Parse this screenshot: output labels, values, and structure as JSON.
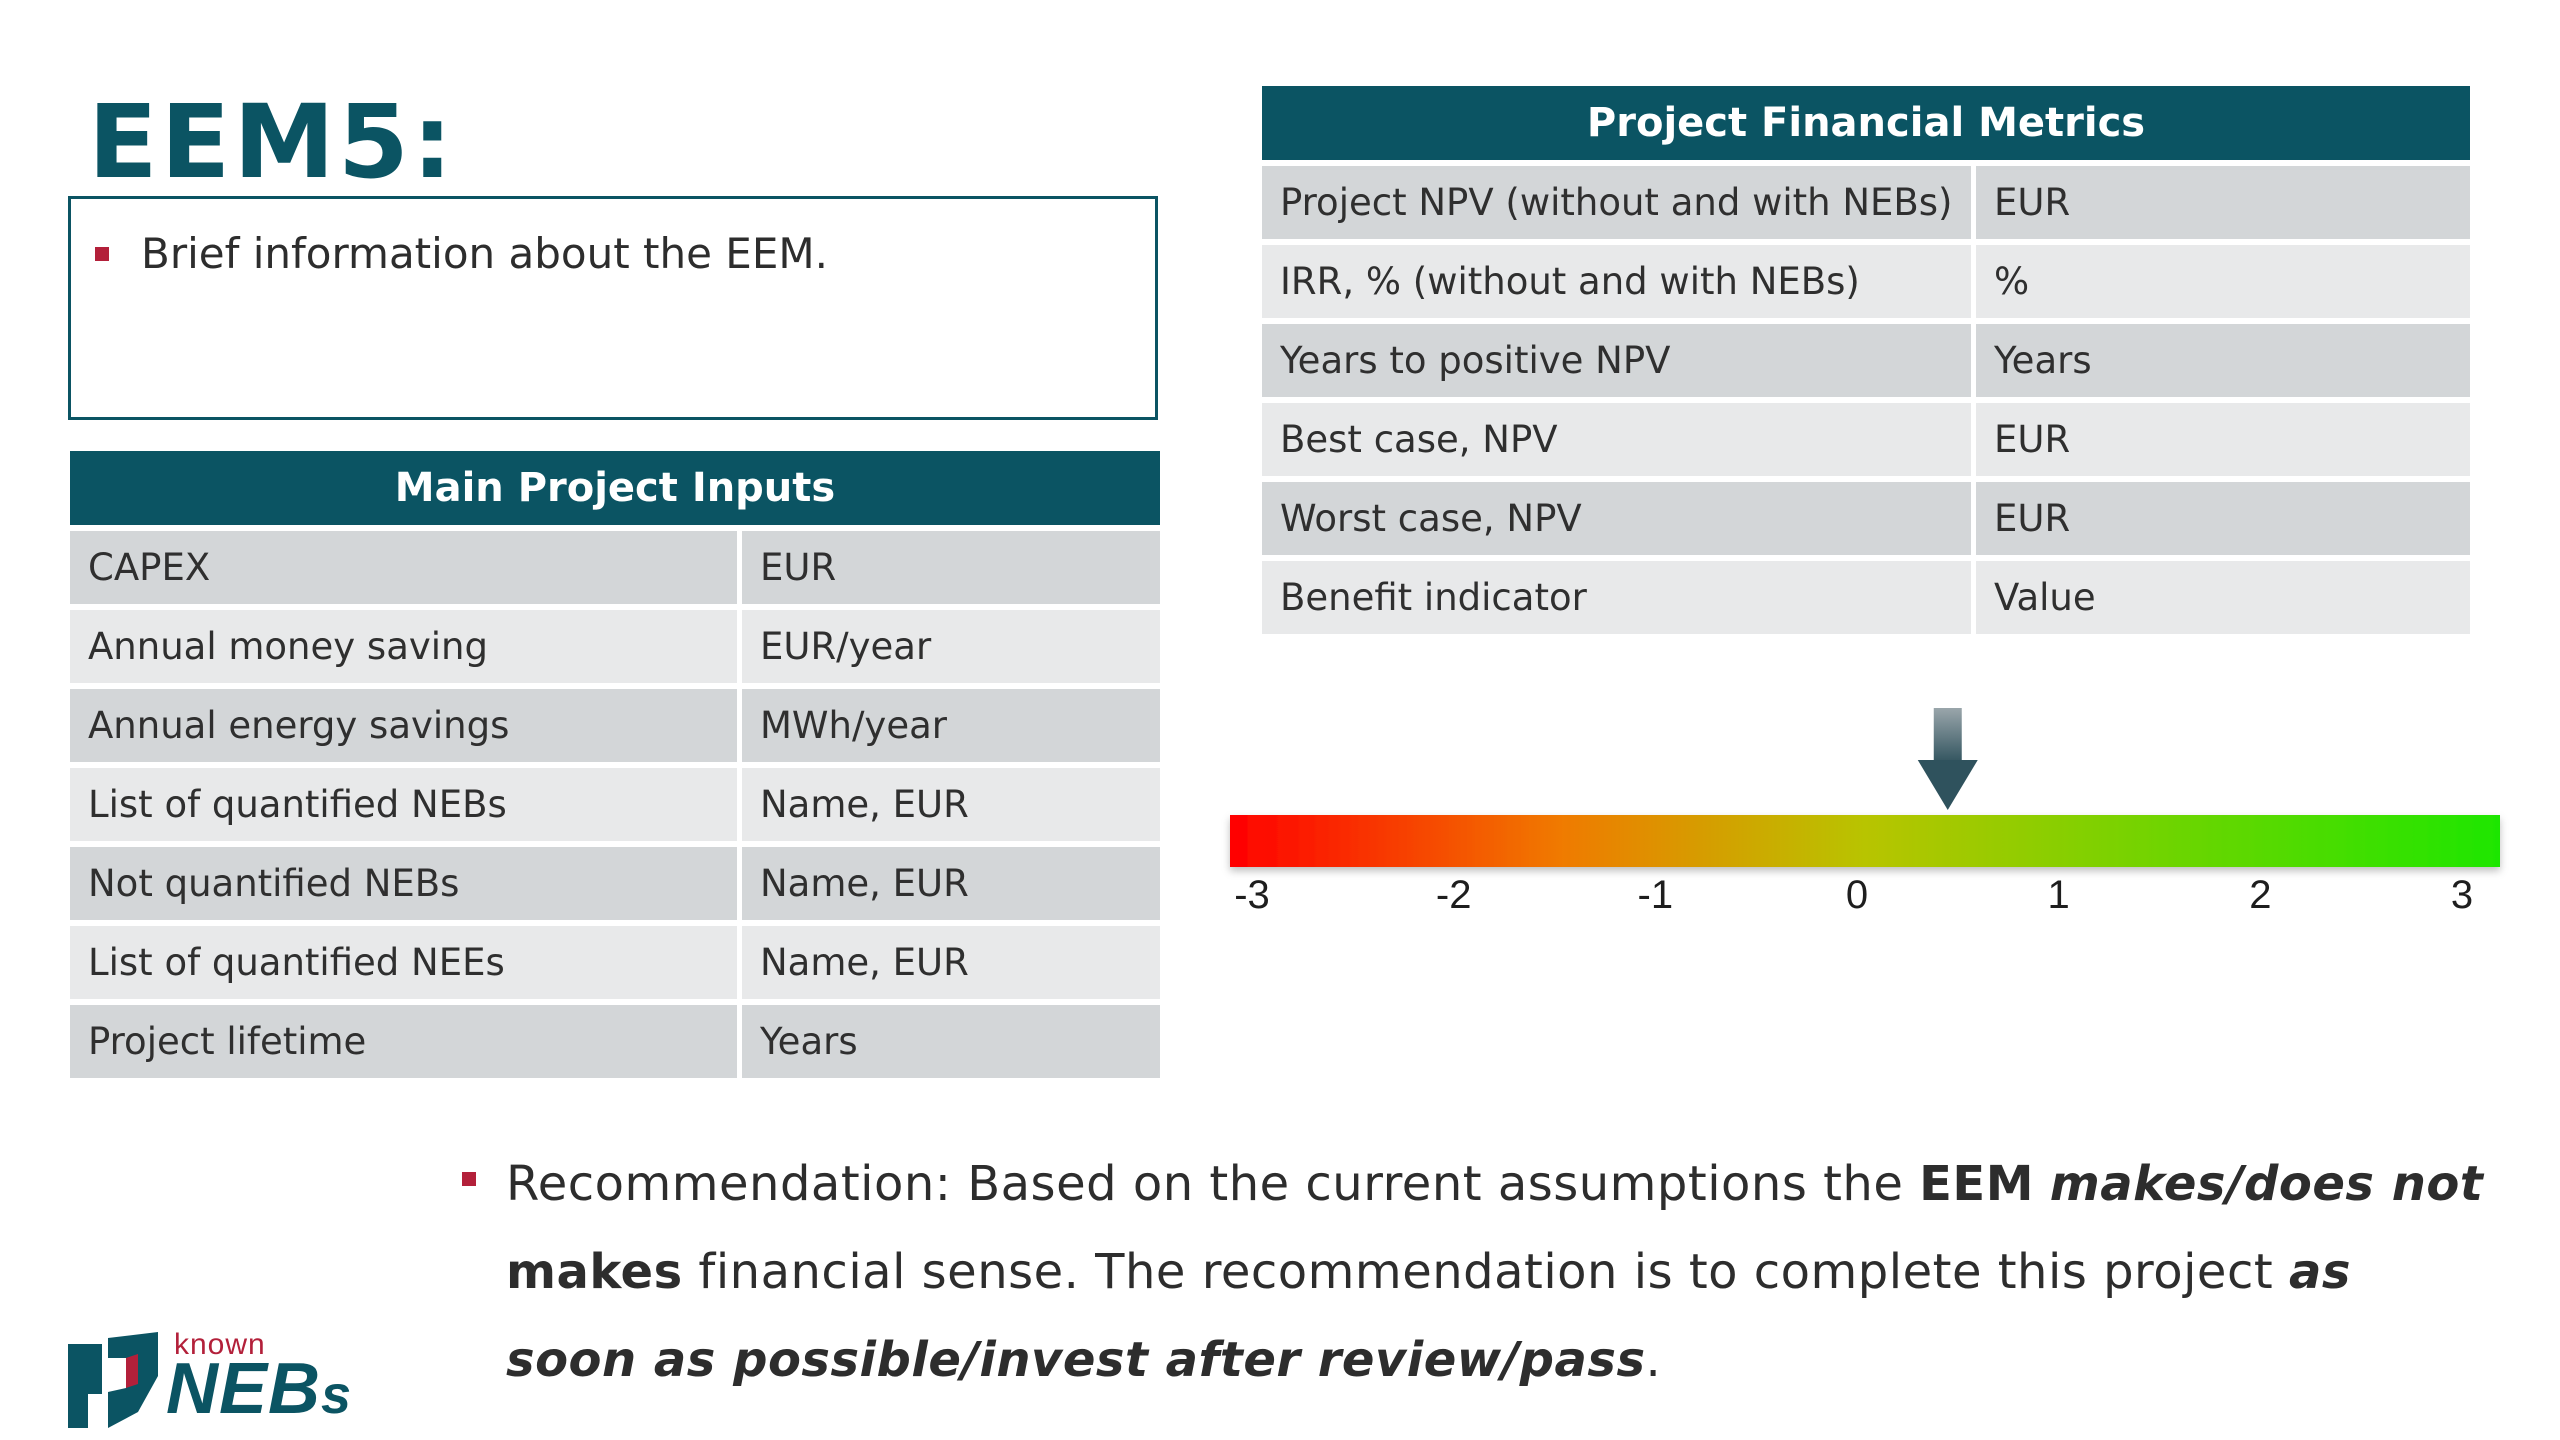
{
  "title": "EEM5:",
  "info": {
    "bullet": "Brief information about the EEM."
  },
  "inputs_table": {
    "header": "Main Project Inputs",
    "rows": [
      {
        "label": "CAPEX",
        "value": "EUR"
      },
      {
        "label": "Annual money saving",
        "value": "EUR/year"
      },
      {
        "label": "Annual energy savings",
        "value": "MWh/year"
      },
      {
        "label": "List of quantified NEBs",
        "value": "Name, EUR"
      },
      {
        "label": "Not quantified NEBs",
        "value": "Name, EUR"
      },
      {
        "label": "List of quantified NEEs",
        "value": "Name, EUR"
      },
      {
        "label": "Project lifetime",
        "value": "Years"
      }
    ]
  },
  "metrics_table": {
    "header": "Project Financial Metrics",
    "rows": [
      {
        "label": "Project NPV (without and with NEBs)",
        "value": "EUR"
      },
      {
        "label": "IRR, % (without and with NEBs)",
        "value": "%"
      },
      {
        "label": "Years to positive NPV",
        "value": "Years"
      },
      {
        "label": "Best case, NPV",
        "value": "EUR"
      },
      {
        "label": "Worst case, NPV",
        "value": "EUR"
      },
      {
        "label": "Benefit indicator",
        "value": "Value"
      }
    ]
  },
  "indicator_scale": {
    "min": -3,
    "max": 3,
    "ticks": [
      "-3",
      "-2",
      "-1",
      "0",
      "1",
      "2",
      "3"
    ],
    "pointer_value": 0.45,
    "colors": {
      "low": "#ff0000",
      "mid_low": "#f07a00",
      "mid": "#b8c400",
      "high": "#1ee600"
    }
  },
  "recommendation": {
    "t1": "Recommendation: Based on the current assumptions the ",
    "b1": "EEM",
    "t2": " ",
    "bi1": "makes/does not",
    "t3": " ",
    "b2": "makes",
    "t4": " financial sense. The recommendation is to complete this project ",
    "bi2": "as soon as possible/invest after review/pass",
    "t5": "."
  },
  "logo": {
    "small": "known",
    "big_main": "NEB",
    "big_suffix": "s"
  },
  "colors": {
    "teal": "#0b5463",
    "bullet_red": "#b3203a",
    "row_dark": "#d3d6d8",
    "row_light": "#e8e9ea"
  }
}
